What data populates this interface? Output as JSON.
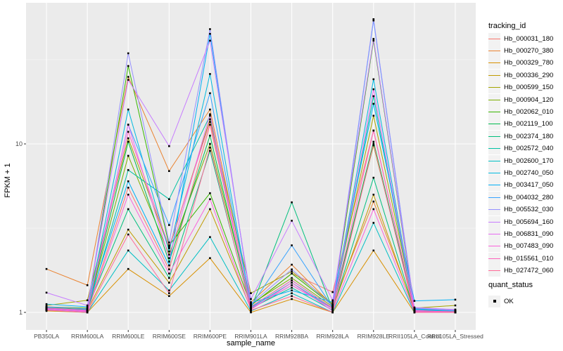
{
  "colors": {
    "background": "#FFFFFF",
    "panel_bg": "#EBEBEB",
    "grid": "#FFFFFF",
    "tick_text": "#4D4D4D",
    "axis_title_text": "#000000",
    "legend_key_bg": "#F2F2F2",
    "point": "#000000"
  },
  "chart_data": {
    "type": "line",
    "title": "",
    "xlabel": "sample_name",
    "ylabel": "FPKM + 1",
    "y_scale": "log10",
    "y_ticks": [
      1,
      10
    ],
    "y_tick_labels": [
      "1",
      "10"
    ],
    "y_minor_ticks": [
      3.1623,
      31.623
    ],
    "ylim": [
      0.79,
      68
    ],
    "grid": true,
    "legend_position": "right",
    "legend_title": "tracking_id",
    "point_legend": {
      "title": "quant_status",
      "label": "OK",
      "marker": "black-square"
    },
    "categories": [
      "PB350LA",
      "RRIM600LA",
      "RRIM600LE",
      "RRIM600SE",
      "RRIM600PE",
      "RRIM901LA",
      "RRIM928BA",
      "RRIM928LA",
      "RRIM928LE",
      "RRII105LA_Control",
      "RRII105LA_Stressed"
    ],
    "series": [
      {
        "name": "Hb_000031_180",
        "color": "#F8766D",
        "values": [
          1.05,
          1.02,
          5.5,
          1.8,
          13.0,
          1.1,
          1.7,
          1.32,
          12.0,
          1.03,
          1.02
        ]
      },
      {
        "name": "Hb_000270_380",
        "color": "#EA8331",
        "values": [
          1.81,
          1.45,
          25.0,
          6.9,
          16.0,
          1.15,
          1.92,
          1.1,
          4.55,
          1.05,
          1.0
        ]
      },
      {
        "name": "Hb_000329_780",
        "color": "#D89000",
        "values": [
          1.02,
          1.0,
          1.81,
          1.25,
          2.1,
          1.0,
          1.2,
          1.0,
          2.33,
          1.0,
          1.0
        ]
      },
      {
        "name": "Hb_000336_290",
        "color": "#C09B00",
        "values": [
          1.04,
          1.03,
          3.1,
          1.5,
          4.1,
          1.05,
          1.45,
          1.05,
          5.0,
          1.02,
          1.0
        ]
      },
      {
        "name": "Hb_000599_150",
        "color": "#A3A500",
        "values": [
          1.1,
          1.18,
          10.8,
          2.4,
          14.0,
          1.3,
          1.75,
          1.12,
          14.7,
          1.06,
          1.1
        ]
      },
      {
        "name": "Hb_000904_120",
        "color": "#7CAE00",
        "values": [
          1.06,
          1.04,
          8.5,
          2.2,
          10.0,
          1.12,
          1.6,
          1.08,
          9.8,
          1.04,
          1.02
        ]
      },
      {
        "name": "Hb_002062_010",
        "color": "#39B600",
        "values": [
          1.08,
          1.06,
          29.0,
          2.5,
          5.1,
          1.1,
          1.7,
          1.1,
          41.0,
          1.05,
          1.03
        ]
      },
      {
        "name": "Hb_002119_100",
        "color": "#00BB4E",
        "values": [
          1.05,
          1.03,
          10.3,
          2.0,
          11.2,
          1.08,
          1.55,
          1.06,
          10.3,
          1.03,
          1.01
        ]
      },
      {
        "name": "Hb_002374_180",
        "color": "#00BF7D",
        "values": [
          1.07,
          1.05,
          4.1,
          1.6,
          9.1,
          1.05,
          4.5,
          1.04,
          6.3,
          1.02,
          1.0
        ]
      },
      {
        "name": "Hb_002572_040",
        "color": "#00C1A3",
        "values": [
          1.04,
          1.02,
          7.0,
          4.7,
          14.7,
          1.06,
          1.4,
          1.03,
          19.2,
          1.01,
          1.0
        ]
      },
      {
        "name": "Hb_002600_170",
        "color": "#00BFC4",
        "values": [
          1.03,
          1.0,
          2.33,
          1.35,
          2.8,
          1.02,
          1.3,
          1.0,
          3.4,
          1.0,
          1.0
        ]
      },
      {
        "name": "Hb_002740_050",
        "color": "#00BAE0",
        "values": [
          1.05,
          1.04,
          16.0,
          2.3,
          26.0,
          1.07,
          1.5,
          1.05,
          24.2,
          1.04,
          1.01
        ]
      },
      {
        "name": "Hb_003417_050",
        "color": "#00B0F6",
        "values": [
          1.12,
          1.08,
          6.0,
          1.9,
          45.0,
          1.14,
          1.35,
          1.15,
          17.3,
          1.17,
          1.19
        ]
      },
      {
        "name": "Hb_004032_280",
        "color": "#35A2FF",
        "values": [
          1.06,
          1.03,
          13.0,
          3.3,
          20.0,
          1.09,
          2.5,
          1.07,
          54.0,
          1.05,
          1.02
        ]
      },
      {
        "name": "Hb_005532_030",
        "color": "#9590FF",
        "values": [
          1.08,
          1.05,
          34.5,
          2.6,
          48.0,
          1.12,
          1.8,
          1.09,
          55.0,
          1.06,
          1.03
        ]
      },
      {
        "name": "Hb_005694_160",
        "color": "#C77CFF",
        "values": [
          1.31,
          1.1,
          24.0,
          9.7,
          41.0,
          1.2,
          3.5,
          1.18,
          42.0,
          1.07,
          1.04
        ]
      },
      {
        "name": "Hb_006831_090",
        "color": "#E76BF3",
        "values": [
          1.05,
          1.02,
          13.0,
          2.1,
          15.0,
          1.06,
          1.45,
          1.05,
          21.1,
          1.03,
          1.0
        ]
      },
      {
        "name": "Hb_007483_090",
        "color": "#FA62DB",
        "values": [
          1.04,
          1.01,
          5.0,
          1.7,
          4.7,
          1.04,
          1.5,
          1.02,
          4.1,
          1.01,
          1.0
        ]
      },
      {
        "name": "Hb_015561_010",
        "color": "#FF62BC",
        "values": [
          1.06,
          1.03,
          11.8,
          2.45,
          13.5,
          1.08,
          1.55,
          1.06,
          12.0,
          1.02,
          1.01
        ]
      },
      {
        "name": "Hb_027472_060",
        "color": "#FF6A98",
        "values": [
          1.03,
          1.0,
          2.9,
          1.3,
          9.5,
          1.03,
          1.25,
          1.0,
          10.0,
          1.0,
          1.0
        ]
      }
    ]
  }
}
